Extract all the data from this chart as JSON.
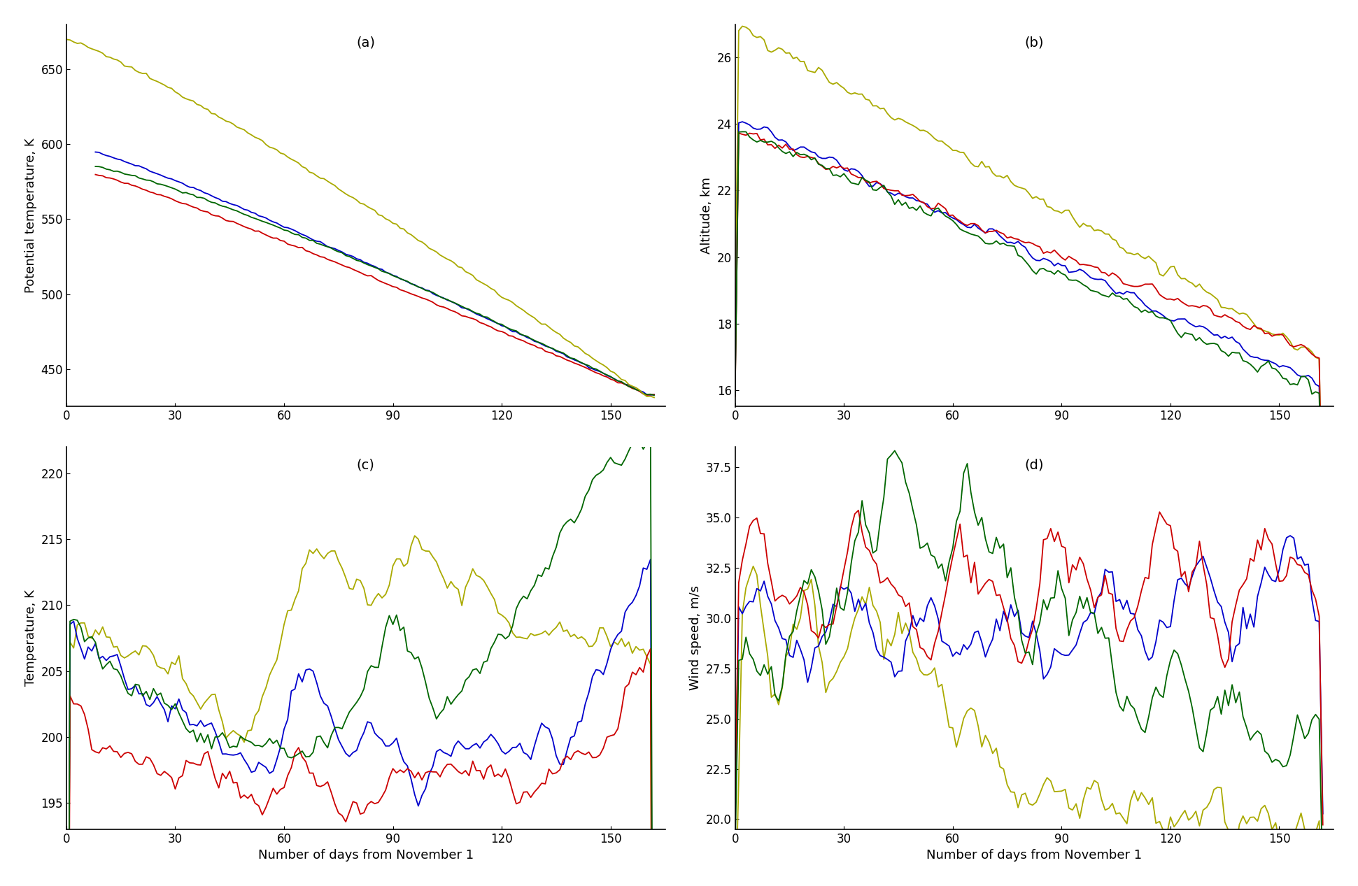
{
  "colors": {
    "blue": "#0000cc",
    "red": "#cc0000",
    "green": "#006600",
    "yellow": "#aaaa00"
  },
  "panel_labels": [
    "(a)",
    "(b)",
    "(c)",
    "(d)"
  ],
  "xlim": [
    0,
    165
  ],
  "xticks": [
    0,
    30,
    60,
    90,
    120,
    150
  ],
  "panel_a": {
    "ylabel": "Potential temperature, K",
    "ylim": [
      425,
      680
    ],
    "yticks": [
      450,
      500,
      550,
      600,
      650
    ]
  },
  "panel_b": {
    "ylabel": "Altitude, km",
    "ylim": [
      15.5,
      27
    ],
    "yticks": [
      16,
      18,
      20,
      22,
      24,
      26
    ]
  },
  "panel_c": {
    "ylabel": "Temperature, K",
    "xlabel": "Number of days from November 1",
    "ylim": [
      193,
      222
    ],
    "yticks": [
      195,
      200,
      205,
      210,
      215,
      220
    ]
  },
  "panel_d": {
    "ylabel": "Wind speed, m/s",
    "xlabel": "Number of days from November 1",
    "ylim": [
      19.5,
      38.5
    ],
    "yticks": [
      20.0,
      22.5,
      25.0,
      27.5,
      30.0,
      32.5,
      35.0,
      37.5
    ]
  }
}
